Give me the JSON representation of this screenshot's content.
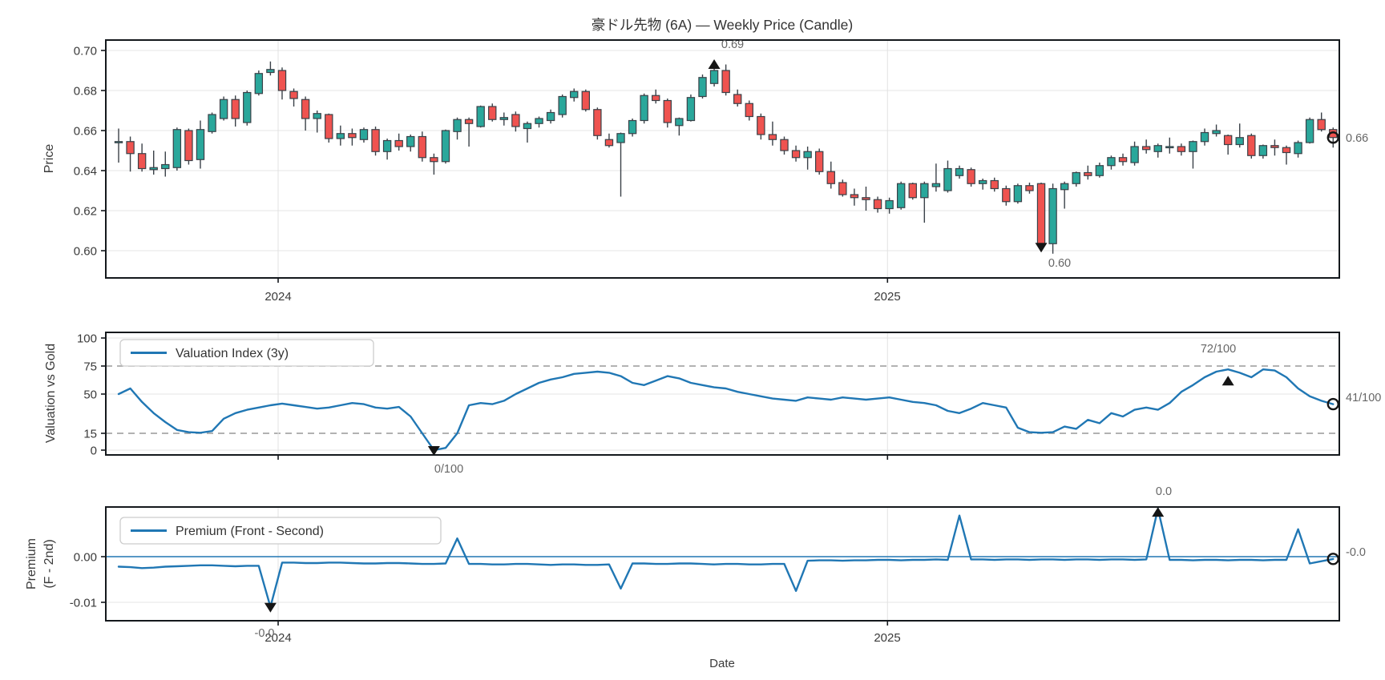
{
  "title": "豪ドル先物 (6A) — Weekly Price (Candle)",
  "date_axis": {
    "label": "Date",
    "year_ticks": [
      {
        "label": "2024",
        "week_index": 13.66
      },
      {
        "label": "2025",
        "week_index": 65.84
      }
    ]
  },
  "colors": {
    "candle_up": "#2aa79b",
    "candle_down": "#ef5350",
    "candle_edge": "#3a4148",
    "line_blue": "#2077b4",
    "marker_black": "#151515",
    "grid": "#e4e4e4",
    "dashed_threshold": "#999999",
    "spine": "#14181c",
    "annotation_text": "#666666",
    "tick_text": "#3a3a3a"
  },
  "panels": {
    "price": {
      "ylabel": "Price",
      "yticks": [
        "0.70",
        "0.68",
        "0.66",
        "0.64",
        "0.62",
        "0.60"
      ],
      "ytick_values": [
        0.7,
        0.68,
        0.66,
        0.64,
        0.62,
        0.6
      ],
      "annotations": {
        "high_label": "0.69",
        "low_label": "0.60",
        "last_label": "0.66"
      }
    },
    "valuation": {
      "ylabel": "Valuation vs Gold",
      "legend_label": "Valuation Index (3y)",
      "yticks": [
        "100",
        "75",
        "50",
        "15",
        "0"
      ],
      "ytick_values": [
        100,
        75,
        50,
        15,
        0
      ],
      "dashed_levels": [
        15,
        75
      ],
      "annotations": {
        "max_label": "72/100",
        "min_label": "0/100",
        "last_label": "41/100"
      }
    },
    "premium": {
      "ylabel_line1": "Premium",
      "ylabel_line2": "(F - 2nd)",
      "legend_label": "Premium (Front - Second)",
      "yticks": [
        "0.00",
        "-0.01"
      ],
      "ytick_values": [
        0.0,
        -0.01
      ],
      "annotations": {
        "max_label": "0.0",
        "min_label": "-0.0",
        "last_label": "-0.0"
      }
    }
  },
  "chart_data": [
    {
      "type": "candlestick",
      "title": "豪ドル先物 (6A) — Weekly Price (Candle)",
      "xlabel": "Date",
      "ylabel": "Price",
      "x_unit": "week_index",
      "ylim": [
        0.5864,
        0.7052
      ],
      "grid": true,
      "high_marker": {
        "index": 51,
        "label": "0.69"
      },
      "low_marker": {
        "index": 79,
        "label": "0.60"
      },
      "last_close_label": "0.66",
      "ohlc": [
        [
          0.654,
          0.661,
          0.644,
          0.6545
        ],
        [
          0.6545,
          0.657,
          0.6395,
          0.6485
        ],
        [
          0.6485,
          0.6535,
          0.6395,
          0.641
        ],
        [
          0.6405,
          0.65,
          0.638,
          0.6415
        ],
        [
          0.641,
          0.6495,
          0.637,
          0.643
        ],
        [
          0.6415,
          0.6615,
          0.64,
          0.6605
        ],
        [
          0.66,
          0.661,
          0.643,
          0.645
        ],
        [
          0.6455,
          0.665,
          0.641,
          0.6605
        ],
        [
          0.6595,
          0.669,
          0.6585,
          0.668
        ],
        [
          0.666,
          0.677,
          0.665,
          0.6755
        ],
        [
          0.6755,
          0.6775,
          0.662,
          0.666
        ],
        [
          0.664,
          0.68,
          0.6625,
          0.679
        ],
        [
          0.6785,
          0.69,
          0.6775,
          0.6885
        ],
        [
          0.689,
          0.6945,
          0.6875,
          0.6905
        ],
        [
          0.69,
          0.6915,
          0.6755,
          0.68
        ],
        [
          0.6795,
          0.681,
          0.672,
          0.676
        ],
        [
          0.6755,
          0.677,
          0.66,
          0.666
        ],
        [
          0.666,
          0.67,
          0.659,
          0.6685
        ],
        [
          0.668,
          0.6685,
          0.654,
          0.656
        ],
        [
          0.656,
          0.6625,
          0.6525,
          0.6585
        ],
        [
          0.6585,
          0.661,
          0.6525,
          0.6565
        ],
        [
          0.6555,
          0.6615,
          0.654,
          0.6605
        ],
        [
          0.6605,
          0.662,
          0.6475,
          0.6495
        ],
        [
          0.6495,
          0.656,
          0.6455,
          0.655
        ],
        [
          0.655,
          0.6585,
          0.65,
          0.652
        ],
        [
          0.652,
          0.658,
          0.6495,
          0.657
        ],
        [
          0.657,
          0.6595,
          0.6445,
          0.6465
        ],
        [
          0.6465,
          0.6485,
          0.638,
          0.6445
        ],
        [
          0.6445,
          0.6605,
          0.6435,
          0.66
        ],
        [
          0.6595,
          0.6665,
          0.6555,
          0.6655
        ],
        [
          0.6655,
          0.6665,
          0.652,
          0.6635
        ],
        [
          0.662,
          0.6725,
          0.6615,
          0.672
        ],
        [
          0.672,
          0.6735,
          0.6645,
          0.6655
        ],
        [
          0.6655,
          0.669,
          0.6625,
          0.6665
        ],
        [
          0.668,
          0.6695,
          0.6595,
          0.662
        ],
        [
          0.661,
          0.6645,
          0.654,
          0.6635
        ],
        [
          0.6635,
          0.667,
          0.6615,
          0.666
        ],
        [
          0.665,
          0.6705,
          0.6635,
          0.669
        ],
        [
          0.668,
          0.678,
          0.6665,
          0.677
        ],
        [
          0.6765,
          0.681,
          0.6745,
          0.6795
        ],
        [
          0.6795,
          0.6805,
          0.6695,
          0.6705
        ],
        [
          0.6705,
          0.6715,
          0.6555,
          0.6575
        ],
        [
          0.6555,
          0.6585,
          0.6515,
          0.6525
        ],
        [
          0.654,
          0.659,
          0.627,
          0.6585
        ],
        [
          0.6585,
          0.666,
          0.657,
          0.665
        ],
        [
          0.665,
          0.6785,
          0.6635,
          0.6775
        ],
        [
          0.6775,
          0.6805,
          0.6735,
          0.675
        ],
        [
          0.675,
          0.676,
          0.6615,
          0.664
        ],
        [
          0.6625,
          0.6665,
          0.6575,
          0.666
        ],
        [
          0.665,
          0.678,
          0.6645,
          0.6765
        ],
        [
          0.677,
          0.688,
          0.676,
          0.6865
        ],
        [
          0.6835,
          0.694,
          0.682,
          0.69
        ],
        [
          0.69,
          0.693,
          0.6775,
          0.679
        ],
        [
          0.678,
          0.6805,
          0.672,
          0.6735
        ],
        [
          0.6735,
          0.675,
          0.665,
          0.667
        ],
        [
          0.667,
          0.6685,
          0.6555,
          0.658
        ],
        [
          0.658,
          0.6645,
          0.6525,
          0.6555
        ],
        [
          0.6555,
          0.657,
          0.648,
          0.65
        ],
        [
          0.65,
          0.6525,
          0.6445,
          0.6465
        ],
        [
          0.6465,
          0.652,
          0.6405,
          0.6495
        ],
        [
          0.6495,
          0.651,
          0.638,
          0.6395
        ],
        [
          0.6395,
          0.6445,
          0.631,
          0.6335
        ],
        [
          0.634,
          0.6355,
          0.627,
          0.628
        ],
        [
          0.628,
          0.631,
          0.6225,
          0.6265
        ],
        [
          0.6265,
          0.632,
          0.62,
          0.6255
        ],
        [
          0.6255,
          0.627,
          0.619,
          0.621
        ],
        [
          0.621,
          0.6265,
          0.6185,
          0.625
        ],
        [
          0.6215,
          0.6345,
          0.6205,
          0.6335
        ],
        [
          0.6335,
          0.634,
          0.6255,
          0.6265
        ],
        [
          0.6265,
          0.6345,
          0.614,
          0.6335
        ],
        [
          0.632,
          0.6435,
          0.6295,
          0.6335
        ],
        [
          0.63,
          0.645,
          0.629,
          0.641
        ],
        [
          0.6375,
          0.6425,
          0.636,
          0.641
        ],
        [
          0.6405,
          0.6415,
          0.632,
          0.6335
        ],
        [
          0.6335,
          0.636,
          0.6305,
          0.635
        ],
        [
          0.635,
          0.6365,
          0.6295,
          0.631
        ],
        [
          0.631,
          0.6325,
          0.6225,
          0.6245
        ],
        [
          0.6245,
          0.6335,
          0.6235,
          0.6325
        ],
        [
          0.6325,
          0.634,
          0.6285,
          0.63
        ],
        [
          0.6335,
          0.634,
          0.6015,
          0.6035
        ],
        [
          0.6035,
          0.6335,
          0.5985,
          0.631
        ],
        [
          0.6305,
          0.6345,
          0.621,
          0.6335
        ],
        [
          0.6335,
          0.6395,
          0.632,
          0.639
        ],
        [
          0.639,
          0.6425,
          0.6355,
          0.6375
        ],
        [
          0.6375,
          0.644,
          0.6365,
          0.6425
        ],
        [
          0.6425,
          0.6475,
          0.6405,
          0.6465
        ],
        [
          0.6465,
          0.6485,
          0.6425,
          0.6445
        ],
        [
          0.644,
          0.6545,
          0.6425,
          0.652
        ],
        [
          0.652,
          0.6555,
          0.6485,
          0.6505
        ],
        [
          0.6495,
          0.6535,
          0.6465,
          0.6525
        ],
        [
          0.652,
          0.6565,
          0.6485,
          0.652
        ],
        [
          0.652,
          0.6535,
          0.6475,
          0.6495
        ],
        [
          0.6495,
          0.655,
          0.641,
          0.6545
        ],
        [
          0.6545,
          0.661,
          0.6525,
          0.659
        ],
        [
          0.6585,
          0.663,
          0.657,
          0.66
        ],
        [
          0.6575,
          0.658,
          0.648,
          0.653
        ],
        [
          0.653,
          0.6635,
          0.6515,
          0.6565
        ],
        [
          0.6575,
          0.6585,
          0.646,
          0.6475
        ],
        [
          0.6475,
          0.653,
          0.646,
          0.6525
        ],
        [
          0.6525,
          0.6555,
          0.6475,
          0.6515
        ],
        [
          0.6515,
          0.6525,
          0.643,
          0.649
        ],
        [
          0.6485,
          0.655,
          0.6465,
          0.654
        ],
        [
          0.654,
          0.6665,
          0.6535,
          0.6655
        ],
        [
          0.6655,
          0.669,
          0.6595,
          0.6605
        ],
        [
          0.6605,
          0.6615,
          0.6515,
          0.6565
        ]
      ]
    },
    {
      "type": "line",
      "series_name": "Valuation Index (3y)",
      "ylabel": "Valuation vs Gold",
      "x_unit": "week_index",
      "ylim": [
        -4.3,
        105
      ],
      "thresholds_dashed": [
        15,
        75
      ],
      "max_marker": {
        "index": 95,
        "label": "72/100"
      },
      "min_marker": {
        "index": 27,
        "label": "0/100"
      },
      "last_label": "41/100",
      "values": [
        50,
        55,
        43,
        33,
        25,
        18,
        16,
        15.5,
        17,
        28,
        33,
        36,
        38,
        40,
        41.5,
        40,
        38.5,
        37,
        38,
        40,
        42,
        41,
        38,
        37,
        38.5,
        30,
        15,
        0,
        2,
        15,
        40,
        42,
        41,
        44,
        50,
        55,
        60,
        63,
        65,
        68,
        69,
        70,
        69,
        66,
        60,
        58,
        62,
        66,
        64,
        60,
        58,
        56,
        55,
        52,
        50,
        48,
        46,
        45,
        44,
        47,
        46,
        45,
        47,
        46,
        45,
        46,
        47,
        45,
        43,
        42,
        40,
        35,
        33,
        37,
        42,
        40,
        38,
        20,
        16,
        15.5,
        16,
        21,
        19,
        27,
        24,
        33,
        30,
        36,
        38,
        36,
        42,
        52,
        58,
        65,
        70,
        72,
        69,
        65,
        72,
        71,
        65,
        55,
        48,
        44,
        41
      ]
    },
    {
      "type": "line",
      "series_name": "Premium (Front - Second)",
      "ylabel": "Premium (F - 2nd)",
      "x_unit": "week_index",
      "ylim": [
        -0.014,
        0.0109
      ],
      "zero_line": true,
      "max_marker": {
        "index": 89,
        "label": "0.0"
      },
      "min_marker": {
        "index": 13,
        "label": "-0.0"
      },
      "last_label": "-0.0",
      "values": [
        -0.0022,
        -0.0023,
        -0.0025,
        -0.0024,
        -0.0022,
        -0.0021,
        -0.002,
        -0.0019,
        -0.0019,
        -0.002,
        -0.0021,
        -0.002,
        -0.002,
        -0.011,
        -0.0013,
        -0.0013,
        -0.0014,
        -0.0014,
        -0.0013,
        -0.0013,
        -0.0014,
        -0.0015,
        -0.0015,
        -0.0014,
        -0.0014,
        -0.0015,
        -0.0016,
        -0.0016,
        -0.0015,
        0.004,
        -0.0016,
        -0.0016,
        -0.0017,
        -0.0017,
        -0.0016,
        -0.0016,
        -0.0017,
        -0.0018,
        -0.0017,
        -0.0017,
        -0.0018,
        -0.0018,
        -0.0017,
        -0.007,
        -0.0015,
        -0.0015,
        -0.0016,
        -0.0016,
        -0.0015,
        -0.0015,
        -0.0016,
        -0.0017,
        -0.0016,
        -0.0016,
        -0.0017,
        -0.0017,
        -0.0016,
        -0.0016,
        -0.0075,
        -0.0009,
        -0.0008,
        -0.0008,
        -0.0009,
        -0.0008,
        -0.0008,
        -0.0007,
        -0.0007,
        -0.0008,
        -0.0007,
        -0.0007,
        -0.0006,
        -0.0007,
        0.009,
        -0.0006,
        -0.0006,
        -0.0007,
        -0.0006,
        -0.0006,
        -0.0007,
        -0.0006,
        -0.0006,
        -0.0007,
        -0.0006,
        -0.0006,
        -0.0007,
        -0.0006,
        -0.0006,
        -0.0007,
        -0.0006,
        0.0105,
        -0.0007,
        -0.0007,
        -0.0008,
        -0.0007,
        -0.0007,
        -0.0008,
        -0.0007,
        -0.0007,
        -0.0008,
        -0.0007,
        -0.0007,
        0.006,
        -0.0015,
        -0.001,
        -0.0005
      ]
    }
  ]
}
